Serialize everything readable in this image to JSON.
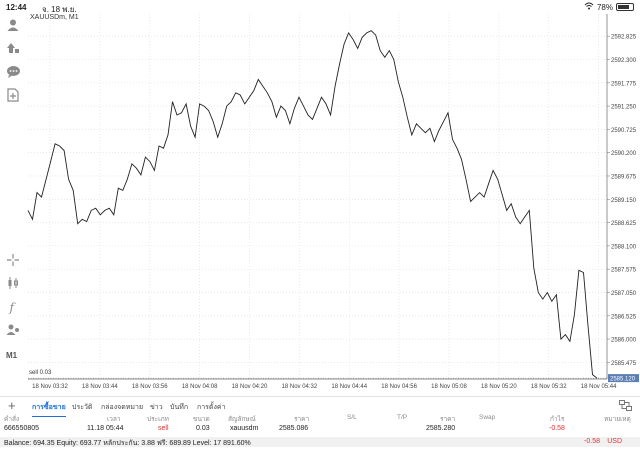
{
  "status_bar": {
    "time": "12:44",
    "date": "จ. 18 พ.ย.",
    "battery": "78%",
    "battery_level": 0.78
  },
  "chart": {
    "title": "XAUUSDm, M1",
    "line_color": "#222222",
    "grid_color": "#dcdcdc",
    "marker_label": "sell 0.03",
    "current_price": "2585.120",
    "current_price_bg": "#5b7fb3"
  },
  "chart_data": {
    "type": "line",
    "x_labels": [
      "18 Nov 03:32",
      "18 Nov 03:44",
      "18 Nov 03:56",
      "18 Nov 04:08",
      "18 Nov 04:20",
      "18 Nov 04:32",
      "18 Nov 04:44",
      "18 Nov 04:56",
      "18 Nov 05:08",
      "18 Nov 05:20",
      "18 Nov 05:32",
      "18 Nov 05:44"
    ],
    "y_ticks": [
      "2592.825",
      "2592.300",
      "2591.775",
      "2591.250",
      "2590.725",
      "2590.200",
      "2589.675",
      "2589.150",
      "2588.625",
      "2588.100",
      "2587.575",
      "2587.050",
      "2586.525",
      "2586.000",
      "2585.475"
    ],
    "ylim": [
      2585.1,
      2593.1
    ],
    "grid": true,
    "values": [
      2588.9,
      2588.7,
      2589.3,
      2589.2,
      2589.6,
      2590.0,
      2590.4,
      2590.35,
      2590.25,
      2589.6,
      2589.35,
      2588.6,
      2588.7,
      2588.65,
      2588.9,
      2588.95,
      2588.8,
      2588.9,
      2588.95,
      2588.8,
      2589.4,
      2589.35,
      2589.6,
      2589.95,
      2589.85,
      2589.7,
      2590.1,
      2590.0,
      2589.8,
      2590.35,
      2590.3,
      2590.6,
      2591.35,
      2591.05,
      2591.1,
      2591.3,
      2590.8,
      2590.55,
      2591.3,
      2591.25,
      2591.15,
      2590.9,
      2590.55,
      2590.85,
      2591.25,
      2591.35,
      2591.55,
      2591.5,
      2591.3,
      2591.45,
      2591.6,
      2591.85,
      2591.7,
      2591.55,
      2591.35,
      2591.0,
      2591.25,
      2591.15,
      2590.85,
      2591.2,
      2591.45,
      2591.25,
      2591.05,
      2590.95,
      2591.2,
      2591.45,
      2591.3,
      2591.05,
      2591.7,
      2592.2,
      2592.65,
      2592.9,
      2592.75,
      2592.55,
      2592.8,
      2592.9,
      2592.95,
      2592.85,
      2592.5,
      2592.35,
      2592.5,
      2592.3,
      2591.8,
      2591.45,
      2591.0,
      2590.6,
      2590.85,
      2590.75,
      2590.65,
      2590.75,
      2590.45,
      2590.7,
      2590.9,
      2591.1,
      2590.5,
      2590.3,
      2590.05,
      2589.6,
      2589.1,
      2589.2,
      2589.3,
      2589.2,
      2589.5,
      2589.8,
      2589.6,
      2589.25,
      2588.9,
      2589.05,
      2588.75,
      2588.6,
      2588.75,
      2588.9,
      2587.6,
      2587.05,
      2586.9,
      2587.05,
      2586.85,
      2587.0,
      2586.0,
      2586.1,
      2585.95,
      2586.55,
      2587.55,
      2587.5,
      2586.3,
      2585.2,
      2585.12
    ]
  },
  "tabs": {
    "add": "+",
    "items": [
      "การซื้อขาย",
      "ประวัติ",
      "กล่องจดหมาย",
      "ข่าว",
      "บันทึก",
      "การตั้งค่า"
    ]
  },
  "table": {
    "headers": [
      "คำสั่ง",
      "เวลา",
      "ประเภท",
      "ขนาด",
      "สัญลักษณ์",
      "ราคา",
      "S/L",
      "T/P",
      "ราคา",
      "Swap",
      "กำไร",
      "หมายเหตุ"
    ],
    "row": {
      "order": "666550805",
      "time": "11.18 05:44",
      "type": "sell",
      "size": "0.03",
      "symbol": "xauusdm",
      "open_price": "2585.086",
      "sl": "",
      "tp": "",
      "price": "2585.280",
      "swap": "",
      "profit": "-0.58",
      "note": ""
    }
  },
  "balance": {
    "text": "Balance: 694.35 Equity: 693.77 หลักประกัน: 3.88 ฟรี: 689.89 Level: 17 891.60%",
    "pl": "-0.58",
    "currency": "USD"
  },
  "toolbar": {
    "timeframe": "M1"
  }
}
